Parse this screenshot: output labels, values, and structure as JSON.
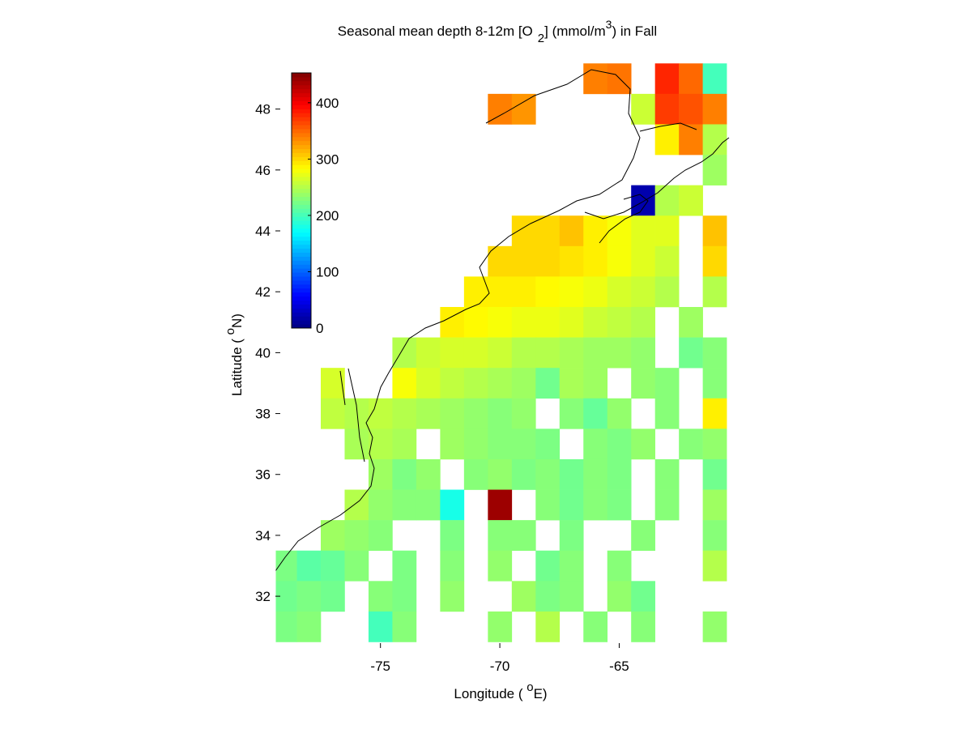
{
  "chart_data": {
    "type": "heatmap",
    "title": [
      "Seasonal mean depth 8-12m [O",
      "2",
      "] (mmol/m",
      "3",
      ") in  Fall"
    ],
    "xlabel": [
      "Longitude ( ",
      "o",
      "E)"
    ],
    "ylabel": [
      "Latitude ( ",
      "o",
      "N)"
    ],
    "x": [
      -79,
      -78,
      -77,
      -76,
      -75,
      -74,
      -73,
      -72,
      -71,
      -70,
      -69,
      -68,
      -67,
      -66,
      -65,
      -64,
      -63,
      -62,
      -61
    ],
    "y": [
      49,
      48,
      47,
      46,
      45,
      44,
      43,
      42,
      41,
      40,
      39,
      38,
      37,
      36,
      35,
      34,
      33,
      32,
      31
    ],
    "z": [
      [
        null,
        null,
        null,
        null,
        null,
        null,
        null,
        null,
        null,
        null,
        null,
        null,
        null,
        340,
        345,
        null,
        380,
        350,
        200
      ],
      [
        null,
        null,
        null,
        null,
        null,
        null,
        null,
        null,
        null,
        340,
        330,
        null,
        null,
        null,
        null,
        260,
        370,
        360,
        340
      ],
      [
        null,
        null,
        null,
        null,
        null,
        null,
        null,
        null,
        null,
        null,
        null,
        null,
        null,
        null,
        null,
        null,
        290,
        340,
        250
      ],
      [
        null,
        null,
        null,
        null,
        null,
        null,
        null,
        null,
        null,
        null,
        null,
        null,
        null,
        null,
        null,
        null,
        null,
        null,
        240
      ],
      [
        null,
        null,
        null,
        null,
        null,
        null,
        null,
        null,
        null,
        null,
        null,
        null,
        null,
        null,
        null,
        20,
        250,
        260,
        null
      ],
      [
        null,
        null,
        null,
        null,
        null,
        null,
        null,
        null,
        null,
        null,
        300,
        300,
        310,
        290,
        280,
        270,
        270,
        null,
        310
      ],
      [
        null,
        null,
        null,
        null,
        null,
        null,
        null,
        null,
        null,
        300,
        300,
        300,
        295,
        290,
        280,
        270,
        260,
        null,
        300
      ],
      [
        null,
        null,
        null,
        null,
        null,
        null,
        null,
        null,
        290,
        290,
        290,
        285,
        280,
        275,
        265,
        260,
        250,
        null,
        250
      ],
      [
        null,
        null,
        null,
        null,
        null,
        null,
        null,
        290,
        285,
        280,
        275,
        275,
        270,
        260,
        255,
        250,
        null,
        240,
        null
      ],
      [
        null,
        null,
        null,
        null,
        null,
        250,
        260,
        265,
        265,
        260,
        250,
        250,
        245,
        240,
        240,
        235,
        null,
        220,
        230
      ],
      [
        null,
        null,
        265,
        null,
        null,
        280,
        265,
        255,
        250,
        245,
        240,
        220,
        245,
        240,
        null,
        235,
        230,
        null,
        230
      ],
      [
        null,
        null,
        255,
        250,
        255,
        250,
        245,
        240,
        235,
        230,
        235,
        null,
        230,
        215,
        235,
        null,
        230,
        null,
        290
      ],
      [
        null,
        null,
        null,
        245,
        250,
        245,
        null,
        240,
        235,
        230,
        230,
        225,
        null,
        230,
        225,
        235,
        null,
        230,
        235
      ],
      [
        null,
        null,
        null,
        null,
        240,
        225,
        235,
        null,
        230,
        235,
        225,
        230,
        220,
        230,
        225,
        null,
        230,
        null,
        220
      ],
      [
        null,
        null,
        null,
        250,
        235,
        230,
        230,
        180,
        null,
        440,
        null,
        230,
        220,
        230,
        225,
        null,
        230,
        null,
        240
      ],
      [
        null,
        null,
        240,
        235,
        230,
        null,
        null,
        225,
        null,
        230,
        230,
        null,
        225,
        null,
        null,
        230,
        null,
        null,
        230
      ],
      [
        225,
        210,
        215,
        230,
        null,
        225,
        null,
        230,
        null,
        235,
        null,
        220,
        230,
        null,
        230,
        null,
        null,
        null,
        250
      ],
      [
        220,
        225,
        220,
        null,
        230,
        225,
        null,
        235,
        null,
        null,
        240,
        225,
        230,
        null,
        235,
        220,
        null,
        null,
        null
      ],
      [
        225,
        230,
        null,
        null,
        200,
        230,
        null,
        null,
        null,
        235,
        null,
        250,
        null,
        230,
        null,
        230,
        null,
        null,
        235
      ]
    ],
    "xlim": [
      -79.4,
      -60.3
    ],
    "ylim": [
      30.3,
      49.8
    ],
    "xticks": [
      -75,
      -70,
      -65
    ],
    "yticks": [
      32,
      34,
      36,
      38,
      40,
      42,
      44,
      46,
      48
    ],
    "clim": [
      0,
      453
    ],
    "cticks": [
      0,
      100,
      200,
      300,
      400
    ],
    "colormap": "jet"
  }
}
